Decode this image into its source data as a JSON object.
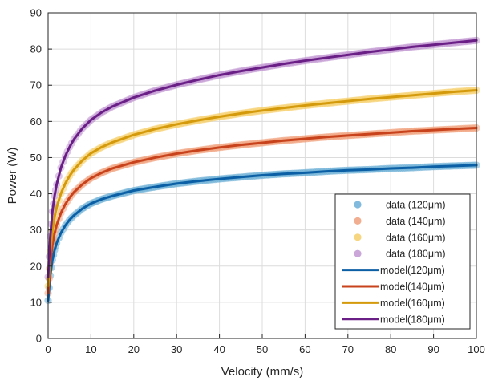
{
  "chart_data": {
    "type": "line",
    "xlabel": "Velocity (mm/s)",
    "ylabel": "Power (W)",
    "xlim": [
      0,
      100
    ],
    "ylim": [
      0,
      90
    ],
    "xticks": [
      0,
      10,
      20,
      30,
      40,
      50,
      60,
      70,
      80,
      90,
      100
    ],
    "yticks": [
      0,
      10,
      20,
      30,
      40,
      50,
      60,
      70,
      80,
      90
    ],
    "grid": true,
    "legend_position": "bottom-right",
    "x": [
      0.0,
      0.25,
      0.5,
      1,
      1.5,
      2,
      3,
      4,
      5,
      6,
      8,
      10,
      12.5,
      15,
      20,
      25,
      30,
      35,
      40,
      45,
      50,
      55,
      60,
      65,
      70,
      75,
      80,
      85,
      90,
      95,
      100
    ],
    "series": [
      {
        "name": "data (120μm)",
        "kind": "data",
        "color": "#6baed6",
        "values": [
          10.5,
          14.0,
          17.4,
          21.7,
          24.4,
          26.4,
          29.2,
          31.2,
          32.8,
          34.0,
          35.9,
          37.3,
          38.5,
          39.4,
          40.9,
          41.9,
          42.8,
          43.5,
          44.1,
          44.6,
          45.1,
          45.5,
          45.8,
          46.2,
          46.5,
          46.7,
          47.0,
          47.2,
          47.5,
          47.7,
          47.9
        ]
      },
      {
        "name": "data (140μm)",
        "kind": "data",
        "color": "#f0a07c",
        "values": [
          12.5,
          16.6,
          20.7,
          25.8,
          29.0,
          31.4,
          34.7,
          37.1,
          38.9,
          40.4,
          42.6,
          44.3,
          45.8,
          47.0,
          48.7,
          50.0,
          51.1,
          52.0,
          52.8,
          53.5,
          54.1,
          54.7,
          55.2,
          55.7,
          56.1,
          56.5,
          56.9,
          57.3,
          57.6,
          57.9,
          58.2
        ]
      },
      {
        "name": "data (160μm)",
        "kind": "data",
        "color": "#f5cf6b",
        "values": [
          14.5,
          19.3,
          24.0,
          29.9,
          33.6,
          36.3,
          40.1,
          42.8,
          44.9,
          46.6,
          49.2,
          51.2,
          52.9,
          54.2,
          56.3,
          57.9,
          59.2,
          60.3,
          61.3,
          62.2,
          63.0,
          63.7,
          64.4,
          65.0,
          65.6,
          66.2,
          66.7,
          67.2,
          67.7,
          68.2,
          68.6
        ]
      },
      {
        "name": "data (180μm)",
        "kind": "data",
        "color": "#c197d2",
        "values": [
          17.0,
          22.6,
          28.2,
          35.1,
          39.4,
          42.6,
          47.2,
          50.4,
          52.9,
          55.0,
          58.1,
          60.4,
          62.5,
          64.1,
          66.6,
          68.5,
          70.1,
          71.5,
          72.8,
          73.9,
          74.9,
          75.9,
          76.8,
          77.6,
          78.4,
          79.2,
          79.9,
          80.6,
          81.2,
          81.8,
          82.4
        ]
      },
      {
        "name": "model(120μm)",
        "kind": "model",
        "color": "#0b5fa5",
        "values": [
          10.5,
          14.0,
          17.4,
          21.7,
          24.4,
          26.4,
          29.2,
          31.2,
          32.8,
          34.0,
          35.9,
          37.3,
          38.5,
          39.4,
          40.9,
          41.9,
          42.8,
          43.5,
          44.1,
          44.6,
          45.1,
          45.5,
          45.8,
          46.2,
          46.5,
          46.7,
          47.0,
          47.2,
          47.5,
          47.7,
          47.9
        ]
      },
      {
        "name": "model(140μm)",
        "kind": "model",
        "color": "#c8431c",
        "values": [
          12.5,
          16.6,
          20.7,
          25.8,
          29.0,
          31.4,
          34.7,
          37.1,
          38.9,
          40.4,
          42.6,
          44.3,
          45.8,
          47.0,
          48.7,
          50.0,
          51.1,
          52.0,
          52.8,
          53.5,
          54.1,
          54.7,
          55.2,
          55.7,
          56.1,
          56.5,
          56.9,
          57.3,
          57.6,
          57.9,
          58.2
        ]
      },
      {
        "name": "model(160μm)",
        "kind": "model",
        "color": "#d49a0c",
        "values": [
          14.5,
          19.3,
          24.0,
          29.9,
          33.6,
          36.3,
          40.1,
          42.8,
          44.9,
          46.6,
          49.2,
          51.2,
          52.9,
          54.2,
          56.3,
          57.9,
          59.2,
          60.3,
          61.3,
          62.2,
          63.0,
          63.7,
          64.4,
          65.0,
          65.6,
          66.2,
          66.7,
          67.2,
          67.7,
          68.2,
          68.6
        ]
      },
      {
        "name": "model(180μm)",
        "kind": "model",
        "color": "#6a1f86",
        "values": [
          17.0,
          22.6,
          28.2,
          35.1,
          39.4,
          42.6,
          47.2,
          50.4,
          52.9,
          55.0,
          58.1,
          60.4,
          62.5,
          64.1,
          66.6,
          68.5,
          70.1,
          71.5,
          72.8,
          73.9,
          74.9,
          75.9,
          76.8,
          77.6,
          78.4,
          79.2,
          79.9,
          80.6,
          81.2,
          81.8,
          82.4
        ]
      }
    ]
  }
}
